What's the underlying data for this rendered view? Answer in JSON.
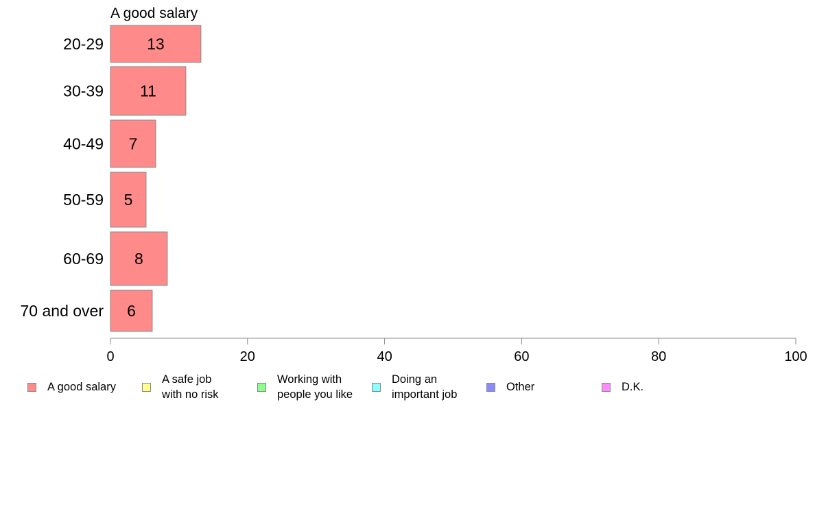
{
  "chart_data": {
    "type": "bar",
    "orientation": "horizontal",
    "title": "A good salary",
    "categories": [
      "20-29",
      "30-39",
      "40-49",
      "50-59",
      "60-69",
      "70 and over"
    ],
    "series": [
      {
        "name": "A good salary",
        "values": [
          13.2,
          11,
          6.6,
          5.2,
          8.3,
          6.1
        ],
        "labels": [
          "13",
          "11",
          "7",
          "5",
          "8",
          "6"
        ]
      }
    ],
    "xlim": [
      0,
      100
    ],
    "xticks": [
      "0",
      "20",
      "40",
      "60",
      "80",
      "100"
    ],
    "grid": false,
    "legend_position": "bottom",
    "legend": [
      {
        "label": "A good salary",
        "color": "#ff8a8a"
      },
      {
        "label": "A safe job\nwith no risk",
        "color": "#ffff8a"
      },
      {
        "label": "Working with\npeople you like",
        "color": "#8aff8a"
      },
      {
        "label": "Doing an\nimportant job",
        "color": "#8affff"
      },
      {
        "label": "Other",
        "color": "#8a8aff"
      },
      {
        "label": "D.K.",
        "color": "#ff8aff"
      }
    ],
    "bar_color": "#ff8a8a",
    "bar_edge_color": "#888888"
  }
}
